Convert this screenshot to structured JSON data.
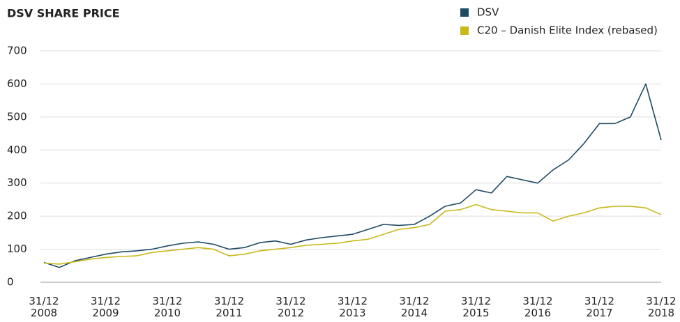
{
  "chart_data": {
    "type": "line",
    "title": "DSV SHARE PRICE",
    "x": [
      2008,
      2008.25,
      2008.5,
      2008.75,
      2009,
      2009.25,
      2009.5,
      2009.75,
      2010,
      2010.25,
      2010.5,
      2010.75,
      2011,
      2011.25,
      2011.5,
      2011.75,
      2012,
      2012.25,
      2012.5,
      2012.75,
      2013,
      2013.25,
      2013.5,
      2013.75,
      2014,
      2014.25,
      2014.5,
      2014.75,
      2015,
      2015.25,
      2015.5,
      2015.75,
      2016,
      2016.25,
      2016.5,
      2016.75,
      2017,
      2017.25,
      2017.5,
      2017.75,
      2018
    ],
    "series": [
      {
        "name": "DSV",
        "color": "#1e4a63",
        "values": [
          60,
          45,
          65,
          75,
          85,
          92,
          95,
          100,
          110,
          118,
          122,
          115,
          100,
          105,
          120,
          125,
          115,
          128,
          135,
          140,
          145,
          160,
          175,
          172,
          175,
          200,
          230,
          240,
          280,
          270,
          320,
          310,
          300,
          340,
          370,
          420,
          480,
          480,
          500,
          600,
          430
        ]
      },
      {
        "name": "C20 – Danish Elite Index (rebased)",
        "color": "#c8b818",
        "values": [
          58,
          55,
          62,
          70,
          75,
          78,
          80,
          90,
          95,
          100,
          105,
          100,
          80,
          85,
          95,
          100,
          105,
          112,
          115,
          118,
          125,
          130,
          145,
          160,
          165,
          175,
          215,
          220,
          235,
          220,
          215,
          210,
          210,
          185,
          200,
          210,
          225,
          230,
          230,
          225,
          205
        ]
      }
    ],
    "xlim": [
      2008,
      2018
    ],
    "xticks": [
      {
        "value": 2008,
        "label": "31/12\n2008"
      },
      {
        "value": 2009,
        "label": "31/12\n2009"
      },
      {
        "value": 2010,
        "label": "31/12\n2010"
      },
      {
        "value": 2011,
        "label": "31/12\n2011"
      },
      {
        "value": 2012,
        "label": "31/12\n2012"
      },
      {
        "value": 2013,
        "label": "31/12\n2013"
      },
      {
        "value": 2014,
        "label": "31/12\n2014"
      },
      {
        "value": 2015,
        "label": "31/12\n2015"
      },
      {
        "value": 2016,
        "label": "31/12\n2016"
      },
      {
        "value": 2017,
        "label": "31/12\n2017"
      },
      {
        "value": 2018,
        "label": "31/12\n2018"
      }
    ],
    "ylim": [
      0,
      700
    ],
    "yticks": [
      0,
      100,
      200,
      300,
      400,
      500,
      600,
      700
    ],
    "grid": true
  }
}
